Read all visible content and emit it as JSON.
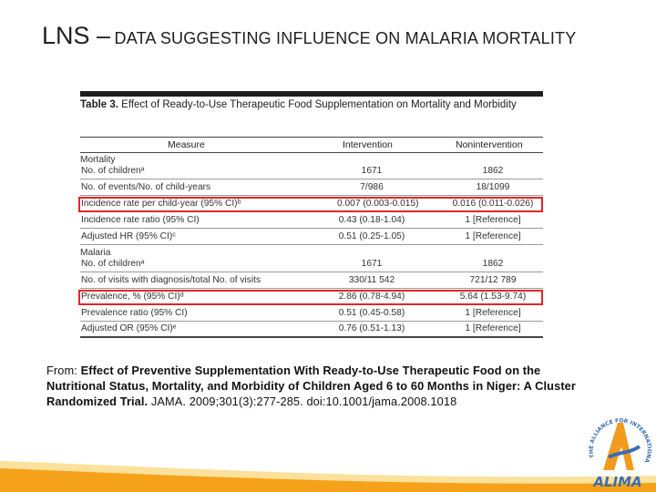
{
  "slide": {
    "title_big": "LNS –",
    "title_small": "DATA SUGGESTING INFLUENCE ON MALARIA MORTALITY"
  },
  "table": {
    "caption_bold": "Table 3.",
    "caption_text": "Effect of Ready-to-Use Therapeutic Food Supplementation on Mortality and Morbidity",
    "headers": [
      "Measure",
      "Intervention",
      "Nonintervention"
    ],
    "rows": [
      {
        "measure": "Mortality",
        "intervention": "",
        "nonintervention": ""
      },
      {
        "measure": "No. of childrenᵃ",
        "intervention": "1671",
        "nonintervention": "1862"
      },
      {
        "measure": "No. of events/No. of child-years",
        "intervention": "7/986",
        "nonintervention": "18/1099"
      },
      {
        "measure": "Incidence rate per child-year (95% CI)ᵇ",
        "intervention": "0.007 (0.003-0.015)",
        "nonintervention": "0.016 (0.011-0.026)"
      },
      {
        "measure": "Incidence rate ratio (95% CI)",
        "intervention": "0.43 (0.18-1.04)",
        "nonintervention": "1 [Reference]"
      },
      {
        "measure": "Adjusted HR (95% CI)ᶜ",
        "intervention": "0.51 (0.25-1.05)",
        "nonintervention": "1 [Reference]"
      },
      {
        "measure": "Malaria",
        "intervention": "",
        "nonintervention": ""
      },
      {
        "measure": "No. of childrenᵃ",
        "intervention": "1671",
        "nonintervention": "1862"
      },
      {
        "measure": "No. of visits with diagnosis/total No. of visits",
        "intervention": "330/11 542",
        "nonintervention": "721/12 789"
      },
      {
        "measure": "Prevalence, % (95% CI)ᵈ",
        "intervention": "2.86 (0.78-4.94)",
        "nonintervention": "5.64 (1.53-9.74)"
      },
      {
        "measure": "Prevalence ratio (95% CI)",
        "intervention": "0.51 (0.45-0.58)",
        "nonintervention": "1 [Reference]"
      },
      {
        "measure": "Adjusted OR (95% CI)ᵉ",
        "intervention": "0.76 (0.51-1.13)",
        "nonintervention": "1 [Reference]"
      }
    ]
  },
  "citation": {
    "prefix": "From: ",
    "title": "Effect of Preventive Supplementation With Ready-to-Use Therapeutic Food on the Nutritional Status, Mortality, and Morbidity of Children Aged 6 to 60 Months in Niger: A Cluster Randomized Trial.",
    "source": " JAMA. 2009;301(3):277-285. doi:10.1001/jama.2008.1018"
  },
  "logo": {
    "ring_text": "THE ALLIANCE FOR INTERNATIONAL MEDICAL ACTION",
    "name": "ALIMA"
  },
  "colors": {
    "highlight": "#e0262b",
    "wave_orange": "#f5a21a",
    "wave_yellow": "#f7c948",
    "logo_blue": "#3a6db0",
    "logo_orange": "#f29a1e"
  }
}
